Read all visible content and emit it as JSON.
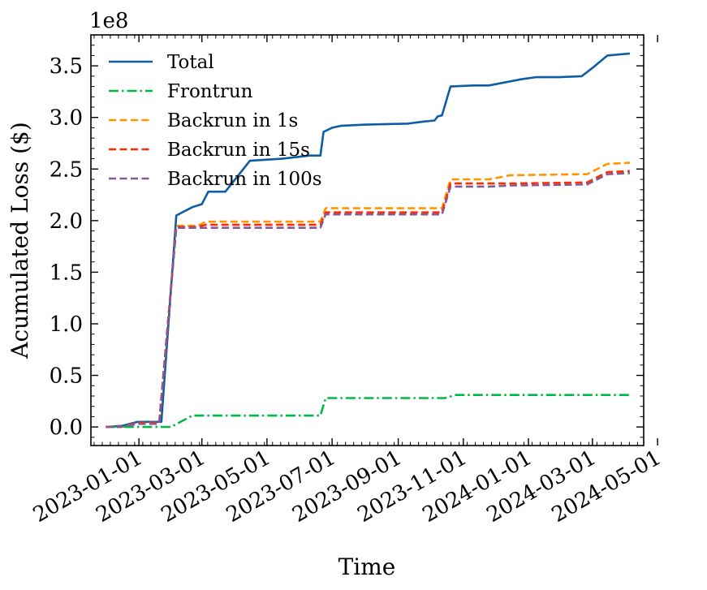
{
  "chart_data": {
    "type": "line",
    "xlabel": "Time",
    "ylabel": "Acumulated Loss ($)",
    "offset_text": "1e8",
    "y_scale": 100000000,
    "ylim": [
      -0.18,
      3.8
    ],
    "xlim": [
      "2022-11-17",
      "2024-04-18"
    ],
    "x_ticks": [
      {
        "date": "2023-01-01",
        "label": "2023-01-01"
      },
      {
        "date": "2023-03-01",
        "label": "2023-03-01"
      },
      {
        "date": "2023-05-01",
        "label": "2023-05-01"
      },
      {
        "date": "2023-07-01",
        "label": "2023-07-01"
      },
      {
        "date": "2023-09-01",
        "label": "2023-09-01"
      },
      {
        "date": "2023-11-01",
        "label": "2023-11-01"
      },
      {
        "date": "2024-01-01",
        "label": "2024-01-01"
      },
      {
        "date": "2024-03-01",
        "label": "2024-03-01"
      },
      {
        "date": "2024-05-01",
        "label": "2024-05-01"
      }
    ],
    "y_ticks": [
      {
        "value": 0.0,
        "label": "0.0"
      },
      {
        "value": 0.5,
        "label": "0.5"
      },
      {
        "value": 1.0,
        "label": "1.0"
      },
      {
        "value": 1.5,
        "label": "1.5"
      },
      {
        "value": 2.0,
        "label": "2.0"
      },
      {
        "value": 2.5,
        "label": "2.5"
      },
      {
        "value": 3.0,
        "label": "3.0"
      },
      {
        "value": 3.5,
        "label": "3.5"
      }
    ],
    "legend_location": "upper-left",
    "series": [
      {
        "name": "Total",
        "color": "#0C5DA5",
        "dash": "solid",
        "points": [
          [
            "2022-12-01",
            0.0
          ],
          [
            "2022-12-16",
            0.01
          ],
          [
            "2022-12-31",
            0.05
          ],
          [
            "2023-01-15",
            0.05
          ],
          [
            "2023-01-22",
            0.05
          ],
          [
            "2023-02-05",
            2.05
          ],
          [
            "2023-02-20",
            2.13
          ],
          [
            "2023-03-01",
            2.16
          ],
          [
            "2023-03-07",
            2.28
          ],
          [
            "2023-03-23",
            2.28
          ],
          [
            "2023-04-15",
            2.58
          ],
          [
            "2023-05-15",
            2.6
          ],
          [
            "2023-06-10",
            2.63
          ],
          [
            "2023-06-20",
            2.63
          ],
          [
            "2023-06-23",
            2.86
          ],
          [
            "2023-07-01",
            2.9
          ],
          [
            "2023-07-10",
            2.92
          ],
          [
            "2023-08-01",
            2.93
          ],
          [
            "2023-09-10",
            2.94
          ],
          [
            "2023-09-25",
            2.96
          ],
          [
            "2023-10-05",
            2.97
          ],
          [
            "2023-10-08",
            3.01
          ],
          [
            "2023-10-12",
            3.02
          ],
          [
            "2023-10-20",
            3.3
          ],
          [
            "2023-11-10",
            3.31
          ],
          [
            "2023-11-25",
            3.31
          ],
          [
            "2023-12-25",
            3.37
          ],
          [
            "2024-01-08",
            3.39
          ],
          [
            "2024-01-30",
            3.39
          ],
          [
            "2024-02-20",
            3.4
          ],
          [
            "2024-03-01",
            3.48
          ],
          [
            "2024-03-15",
            3.6
          ],
          [
            "2024-04-05",
            3.62
          ]
        ]
      },
      {
        "name": "Frontrun",
        "color": "#00B945",
        "dash": "dashdot",
        "points": [
          [
            "2022-12-01",
            0.0
          ],
          [
            "2023-01-31",
            0.0
          ],
          [
            "2023-02-20",
            0.11
          ],
          [
            "2023-06-20",
            0.11
          ],
          [
            "2023-06-25",
            0.28
          ],
          [
            "2023-10-15",
            0.28
          ],
          [
            "2023-10-25",
            0.31
          ],
          [
            "2024-04-05",
            0.31
          ]
        ]
      },
      {
        "name": "Backrun in 1s",
        "color": "#FF9500",
        "dash": "dashed",
        "points": [
          [
            "2022-12-01",
            0.0
          ],
          [
            "2022-12-15",
            0.0
          ],
          [
            "2022-12-31",
            0.04
          ],
          [
            "2023-01-20",
            0.04
          ],
          [
            "2023-02-05",
            1.95
          ],
          [
            "2023-02-25",
            1.95
          ],
          [
            "2023-03-05",
            1.99
          ],
          [
            "2023-06-20",
            1.99
          ],
          [
            "2023-06-25",
            2.12
          ],
          [
            "2023-10-12",
            2.12
          ],
          [
            "2023-10-20",
            2.4
          ],
          [
            "2023-11-25",
            2.4
          ],
          [
            "2023-12-15",
            2.44
          ],
          [
            "2024-02-25",
            2.45
          ],
          [
            "2024-03-15",
            2.55
          ],
          [
            "2024-04-05",
            2.56
          ]
        ]
      },
      {
        "name": "Backrun in 15s",
        "color": "#FF2C00",
        "dash": "dashed",
        "points": [
          [
            "2022-12-01",
            0.0
          ],
          [
            "2022-12-15",
            0.0
          ],
          [
            "2022-12-31",
            0.04
          ],
          [
            "2023-01-20",
            0.04
          ],
          [
            "2023-02-05",
            1.94
          ],
          [
            "2023-02-25",
            1.94
          ],
          [
            "2023-03-05",
            1.96
          ],
          [
            "2023-06-20",
            1.96
          ],
          [
            "2023-06-25",
            2.08
          ],
          [
            "2023-10-12",
            2.08
          ],
          [
            "2023-10-20",
            2.36
          ],
          [
            "2023-11-25",
            2.36
          ],
          [
            "2023-12-15",
            2.36
          ],
          [
            "2024-02-25",
            2.37
          ],
          [
            "2024-03-15",
            2.47
          ],
          [
            "2024-04-05",
            2.48
          ]
        ]
      },
      {
        "name": "Backrun in 100s",
        "color": "#845B97",
        "dash": "dashed",
        "points": [
          [
            "2022-12-01",
            0.0
          ],
          [
            "2022-12-15",
            0.0
          ],
          [
            "2022-12-31",
            0.03
          ],
          [
            "2023-01-20",
            0.03
          ],
          [
            "2023-02-05",
            1.93
          ],
          [
            "2023-02-25",
            1.93
          ],
          [
            "2023-03-05",
            1.93
          ],
          [
            "2023-06-20",
            1.93
          ],
          [
            "2023-06-25",
            2.06
          ],
          [
            "2023-10-12",
            2.06
          ],
          [
            "2023-10-20",
            2.33
          ],
          [
            "2023-11-25",
            2.33
          ],
          [
            "2023-12-15",
            2.34
          ],
          [
            "2024-02-25",
            2.35
          ],
          [
            "2024-03-15",
            2.45
          ],
          [
            "2024-04-05",
            2.46
          ]
        ]
      }
    ]
  }
}
